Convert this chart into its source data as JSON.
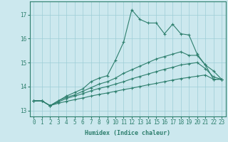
{
  "xlabel": "Humidex (Indice chaleur)",
  "x_values": [
    0,
    1,
    2,
    3,
    4,
    5,
    6,
    7,
    8,
    9,
    10,
    11,
    12,
    13,
    14,
    15,
    16,
    17,
    18,
    19,
    20,
    21,
    22,
    23
  ],
  "line1": [
    13.4,
    13.4,
    13.2,
    13.4,
    13.6,
    13.75,
    13.9,
    14.2,
    14.35,
    14.45,
    15.1,
    15.85,
    17.2,
    16.8,
    16.65,
    16.65,
    16.2,
    16.6,
    16.2,
    16.15,
    15.35,
    14.9,
    14.3,
    14.3
  ],
  "line2": [
    13.4,
    13.4,
    13.2,
    13.4,
    13.55,
    13.65,
    13.8,
    13.95,
    14.1,
    14.2,
    14.35,
    14.55,
    14.7,
    14.85,
    15.0,
    15.15,
    15.25,
    15.35,
    15.45,
    15.3,
    15.3,
    14.9,
    14.65,
    14.3
  ],
  "line3": [
    13.4,
    13.4,
    13.2,
    13.35,
    13.5,
    13.6,
    13.7,
    13.82,
    13.92,
    14.0,
    14.1,
    14.2,
    14.32,
    14.42,
    14.52,
    14.62,
    14.72,
    14.8,
    14.9,
    14.95,
    15.0,
    14.75,
    14.4,
    14.3
  ],
  "line4": [
    13.4,
    13.4,
    13.2,
    13.3,
    13.38,
    13.45,
    13.52,
    13.6,
    13.67,
    13.73,
    13.8,
    13.87,
    13.93,
    14.0,
    14.07,
    14.13,
    14.2,
    14.27,
    14.33,
    14.38,
    14.43,
    14.48,
    14.3,
    14.3
  ],
  "line_color": "#2e7f6e",
  "bg_color": "#cce8ee",
  "grid_color": "#9ecdd6",
  "ylim": [
    12.75,
    17.55
  ],
  "yticks": [
    13,
    14,
    15,
    16,
    17
  ],
  "xticks": [
    0,
    1,
    2,
    3,
    4,
    5,
    6,
    7,
    8,
    9,
    10,
    11,
    12,
    13,
    14,
    15,
    16,
    17,
    18,
    19,
    20,
    21,
    22,
    23
  ]
}
